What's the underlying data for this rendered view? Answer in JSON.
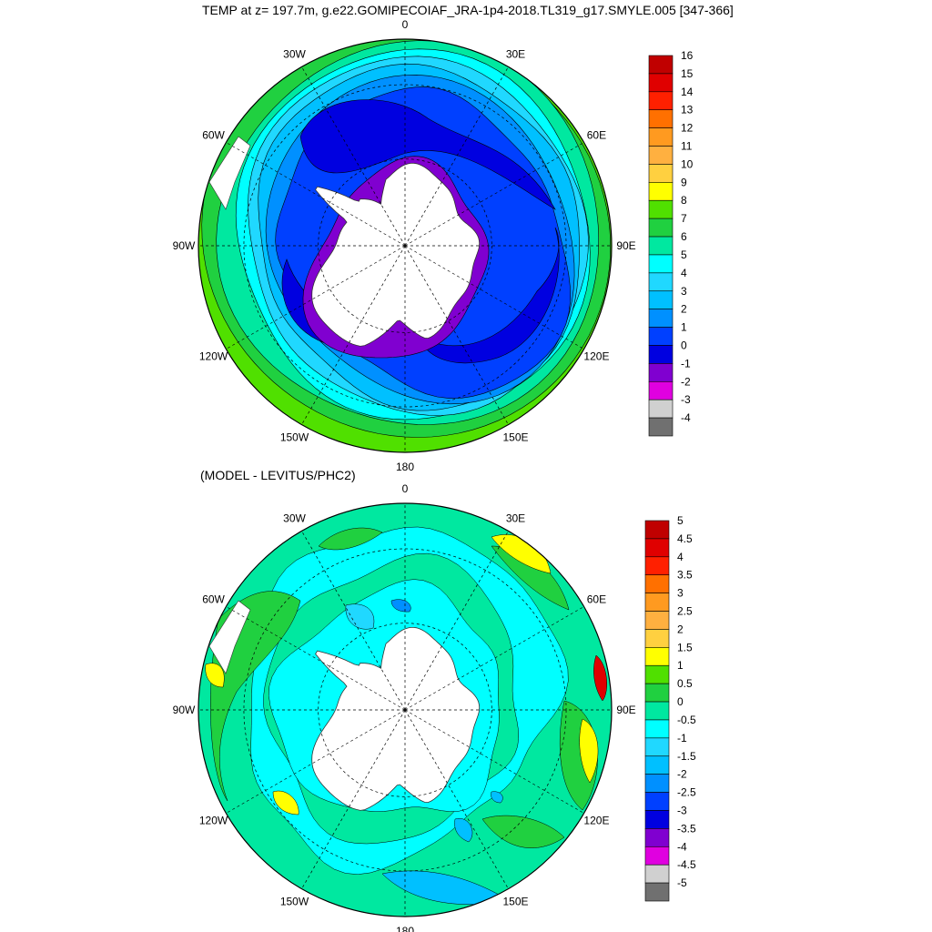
{
  "chart_data": [
    {
      "type": "heatmap",
      "projection": "south-polar-stereographic",
      "title": "TEMP at z= 197.7m, g.e22.GOMIPECOIAF_JRA-1p4-2018.TL319_g17.SMYLE.005 [347-366]",
      "lon_labels": [
        "0",
        "30E",
        "60E",
        "90E",
        "120E",
        "150E",
        "180",
        "150W",
        "120W",
        "90W",
        "60W",
        "30W"
      ],
      "colorbar": {
        "labels": [
          "16",
          "15",
          "14",
          "13",
          "12",
          "11",
          "10",
          "9",
          "8",
          "7",
          "6",
          "5",
          "4",
          "3",
          "2",
          "1",
          "0",
          "-1",
          "-2",
          "-3",
          "-4"
        ],
        "colors": [
          "#c00000",
          "#e00000",
          "#ff2000",
          "#ff7000",
          "#ff9a20",
          "#ffb040",
          "#ffd040",
          "#ffff00",
          "#50e000",
          "#20d040",
          "#00e8a0",
          "#00ffff",
          "#20d8ff",
          "#00c0ff",
          "#0090ff",
          "#0040ff",
          "#0000e0",
          "#8000d0",
          "#e000e0",
          "#d0d0d0",
          "#707070"
        ]
      },
      "field": {
        "ice_shelf_edge": -1.5,
        "ring_zero": 0.5,
        "ring_one": 1.5,
        "ring_two": 2.5,
        "ring_three": 3.5,
        "ring_four": 4.5,
        "ring_five": 5.5,
        "ring_six": 6.5,
        "ring_seven": 7.5,
        "ring_eight": 8.5
      }
    },
    {
      "type": "heatmap",
      "projection": "south-polar-stereographic",
      "title": "(MODEL - LEVITUS/PHC2)",
      "lon_labels": [
        "0",
        "30E",
        "60E",
        "90E",
        "120E",
        "150E",
        "180",
        "150W",
        "120W",
        "90W",
        "60W",
        "30W"
      ],
      "colorbar": {
        "labels": [
          "5",
          "4.5",
          "4",
          "3.5",
          "3",
          "2.5",
          "2",
          "1.5",
          "1",
          "0.5",
          "0",
          "-0.5",
          "-1",
          "-1.5",
          "-2",
          "-2.5",
          "-3",
          "-3.5",
          "-4",
          "-4.5",
          "-5"
        ],
        "colors": [
          "#c00000",
          "#e00000",
          "#ff2000",
          "#ff7000",
          "#ff9a20",
          "#ffb040",
          "#ffd040",
          "#ffff00",
          "#50e000",
          "#20d040",
          "#00e8a0",
          "#00ffff",
          "#20d8ff",
          "#00c0ff",
          "#0090ff",
          "#0040ff",
          "#0000e0",
          "#8000d0",
          "#e000e0",
          "#d0d0d0",
          "#707070"
        ]
      }
    }
  ]
}
